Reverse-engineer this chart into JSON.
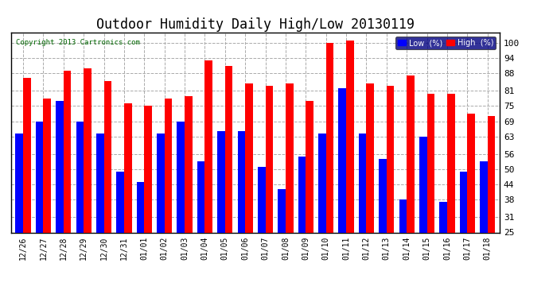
{
  "title": "Outdoor Humidity Daily High/Low 20130119",
  "copyright": "Copyright 2013 Cartronics.com",
  "categories": [
    "12/26",
    "12/27",
    "12/28",
    "12/29",
    "12/30",
    "12/31",
    "01/01",
    "01/02",
    "01/03",
    "01/04",
    "01/05",
    "01/06",
    "01/07",
    "01/08",
    "01/09",
    "01/10",
    "01/11",
    "01/12",
    "01/13",
    "01/14",
    "01/15",
    "01/16",
    "01/17",
    "01/18"
  ],
  "high_values": [
    86,
    78,
    89,
    90,
    85,
    76,
    75,
    78,
    79,
    93,
    91,
    84,
    83,
    84,
    77,
    100,
    101,
    84,
    83,
    87,
    80,
    80,
    72,
    71
  ],
  "low_values": [
    64,
    69,
    77,
    69,
    64,
    49,
    45,
    64,
    69,
    53,
    65,
    65,
    51,
    42,
    55,
    64,
    82,
    64,
    54,
    38,
    63,
    37,
    49,
    53
  ],
  "bar_width": 0.38,
  "bar_color_high": "#ff0000",
  "bar_color_low": "#0000ff",
  "bg_color": "#ffffff",
  "plot_bg_color": "#ffffff",
  "grid_color": "#aaaaaa",
  "yticks": [
    25,
    31,
    38,
    44,
    50,
    56,
    63,
    69,
    75,
    81,
    88,
    94,
    100
  ],
  "ylim": [
    25,
    104
  ],
  "ymin": 25,
  "title_fontsize": 12,
  "legend_label_low": "Low  (%)",
  "legend_label_high": "High  (%)"
}
